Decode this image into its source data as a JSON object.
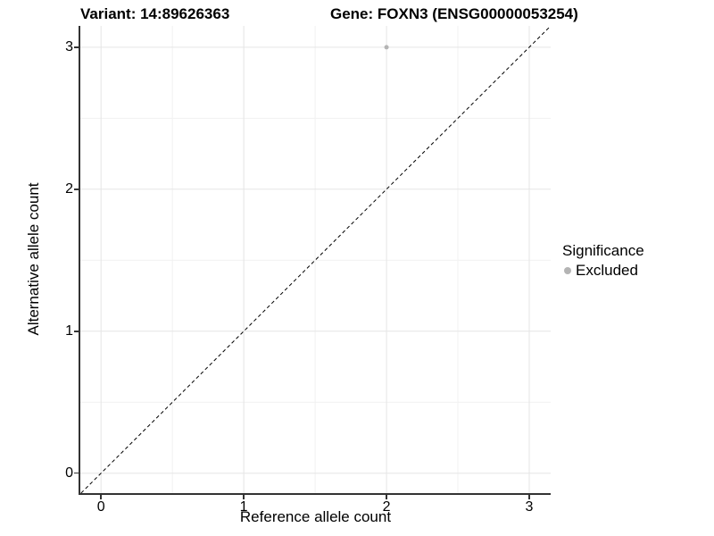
{
  "chart_data": {
    "type": "scatter",
    "title_left": "Variant: 14:89626363",
    "title_right": "Gene: FOXN3 (ENSG00000053254)",
    "xlabel": "Reference allele count",
    "ylabel": "Alternative allele count",
    "xlim": [
      -0.145,
      3.15
    ],
    "ylim": [
      -0.14,
      3.15
    ],
    "x_ticks": [
      0,
      1,
      2,
      3
    ],
    "y_ticks": [
      0,
      1,
      2,
      3
    ],
    "minor_ticks_x": [
      0.5,
      1.5,
      2.5
    ],
    "minor_ticks_y": [
      0.5,
      1.5,
      2.5
    ],
    "grid": "on",
    "series": [
      {
        "name": "Excluded",
        "color": "#b4b4b4",
        "points": [
          {
            "x": 2,
            "y": 3
          }
        ]
      }
    ],
    "reference_line": {
      "type": "identity",
      "style": "dashed",
      "color": "#000000"
    },
    "legend": {
      "title": "Significance",
      "position": "right",
      "entries": [
        {
          "label": "Excluded",
          "color": "#b4b4b4"
        }
      ]
    }
  },
  "colors": {
    "background": "#ffffff",
    "grid_major": "#e5e5e5",
    "grid_minor": "#f1f1f1",
    "axis_line": "#333333",
    "tick_mark": "#333333",
    "text": "#000000"
  }
}
